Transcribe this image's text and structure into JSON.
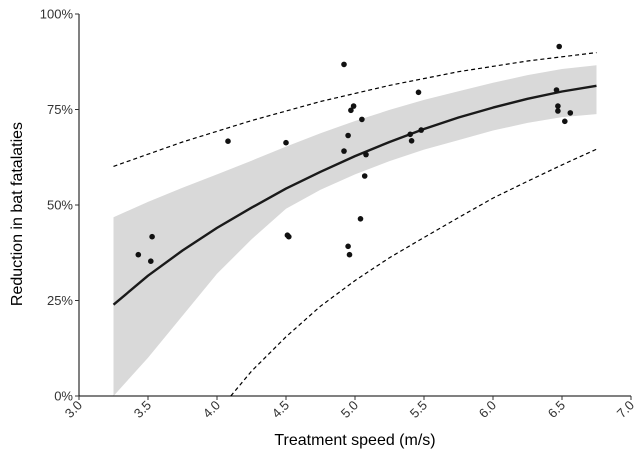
{
  "chart_data": {
    "type": "scatter",
    "xlabel": "Treatment speed (m/s)",
    "ylabel": "Reduction in bat fatalaties",
    "xlim": [
      3.0,
      7.0
    ],
    "ylim": [
      0,
      100
    ],
    "xticks": [
      {
        "value": 3.0,
        "label": "3.0"
      },
      {
        "value": 3.5,
        "label": "3.5"
      },
      {
        "value": 4.0,
        "label": "4.0"
      },
      {
        "value": 4.5,
        "label": "4.5"
      },
      {
        "value": 5.0,
        "label": "5.0"
      },
      {
        "value": 5.5,
        "label": "5.5"
      },
      {
        "value": 6.0,
        "label": "6.0"
      },
      {
        "value": 6.5,
        "label": "6.5"
      },
      {
        "value": 7.0,
        "label": "7.0"
      }
    ],
    "yticks": [
      {
        "value": 0,
        "label": "0%"
      },
      {
        "value": 25,
        "label": "25%"
      },
      {
        "value": 50,
        "label": "50%"
      },
      {
        "value": 75,
        "label": "75%"
      },
      {
        "value": 100,
        "label": "100%"
      }
    ],
    "grid": false,
    "colors": {
      "points": "#111111",
      "fit": "#1a1a1a",
      "band": "#d9d9d9",
      "axis": "#000000"
    },
    "points": [
      {
        "x": 3.43,
        "y": 37
      },
      {
        "x": 3.53,
        "y": 41.7
      },
      {
        "x": 3.52,
        "y": 35.3
      },
      {
        "x": 4.08,
        "y": 66.7
      },
      {
        "x": 4.5,
        "y": 66.3
      },
      {
        "x": 4.51,
        "y": 42.1
      },
      {
        "x": 4.52,
        "y": 41.7
      },
      {
        "x": 4.92,
        "y": 86.8
      },
      {
        "x": 4.92,
        "y": 64.1
      },
      {
        "x": 4.95,
        "y": 68.2
      },
      {
        "x": 4.95,
        "y": 39.2
      },
      {
        "x": 4.96,
        "y": 37
      },
      {
        "x": 4.97,
        "y": 74.8
      },
      {
        "x": 4.99,
        "y": 75.9
      },
      {
        "x": 5.04,
        "y": 46.4
      },
      {
        "x": 5.05,
        "y": 72.4
      },
      {
        "x": 5.07,
        "y": 57.6
      },
      {
        "x": 5.08,
        "y": 63.2
      },
      {
        "x": 5.4,
        "y": 68.5
      },
      {
        "x": 5.41,
        "y": 66.8
      },
      {
        "x": 5.46,
        "y": 79.5
      },
      {
        "x": 5.48,
        "y": 69.6
      },
      {
        "x": 6.46,
        "y": 80.1
      },
      {
        "x": 6.47,
        "y": 75.9
      },
      {
        "x": 6.47,
        "y": 74.6
      },
      {
        "x": 6.48,
        "y": 91.5
      },
      {
        "x": 6.52,
        "y": 71.9
      },
      {
        "x": 6.56,
        "y": 74.1
      }
    ],
    "fit": {
      "x": [
        3.25,
        3.5,
        3.75,
        4.0,
        4.25,
        4.5,
        4.75,
        5.0,
        5.25,
        5.5,
        5.75,
        6.0,
        6.25,
        6.5,
        6.75
      ],
      "y": [
        23.9,
        31.5,
        38.1,
        44.0,
        49.3,
        54.3,
        58.7,
        62.8,
        66.5,
        69.9,
        72.9,
        75.5,
        77.8,
        79.7,
        81.2
      ]
    },
    "confidence_band": {
      "x": [
        3.25,
        3.5,
        3.75,
        4.0,
        4.25,
        4.5,
        4.75,
        5.0,
        5.25,
        5.5,
        5.75,
        6.0,
        6.25,
        6.5,
        6.75
      ],
      "lower": [
        0,
        10,
        21,
        32,
        41,
        49,
        54,
        58,
        61.5,
        64.5,
        67,
        69.5,
        71.5,
        73,
        73.8
      ],
      "upper": [
        46.8,
        50.8,
        54.5,
        58,
        61.6,
        65.3,
        68.8,
        72,
        74.9,
        77.5,
        79.8,
        82,
        84,
        85.6,
        86.6
      ]
    },
    "prediction_upper": {
      "x": [
        3.25,
        3.75,
        4.25,
        4.75,
        5.25,
        5.75,
        6.25,
        6.75
      ],
      "y": [
        60.1,
        66.5,
        72.1,
        77.1,
        81.3,
        84.9,
        87.7,
        89.9
      ]
    },
    "prediction_lower": {
      "x": [
        4.1,
        4.25,
        4.5,
        4.75,
        5.0,
        5.25,
        5.5,
        5.75,
        6.0,
        6.25,
        6.5,
        6.75
      ],
      "y": [
        0,
        6.5,
        15.5,
        23.5,
        30.2,
        36.2,
        41.5,
        46.7,
        51.8,
        56.2,
        60.5,
        64.6
      ]
    }
  }
}
